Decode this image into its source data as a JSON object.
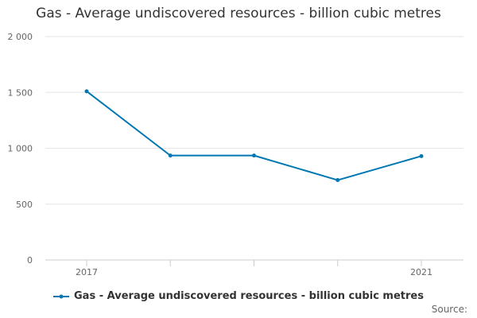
{
  "chart_data": {
    "type": "line",
    "title": "Gas - Average undiscovered resources - billion cubic metres",
    "x_tick_labels": [
      "2017",
      "",
      "",
      "",
      "2021"
    ],
    "series": [
      {
        "name": "Gas - Average undiscovered resources - billion cubic metres",
        "values": [
          1510,
          935,
          935,
          715,
          930
        ],
        "color": "#0077b3"
      }
    ],
    "y_ticks": [
      0,
      500,
      1000,
      1500,
      2000
    ],
    "y_tick_labels": [
      "0",
      "500",
      "1 000",
      "1 500",
      "2 000"
    ],
    "ylim": [
      0,
      2000
    ],
    "grid": true,
    "legend_position": "bottom"
  },
  "source_label": "Source:"
}
